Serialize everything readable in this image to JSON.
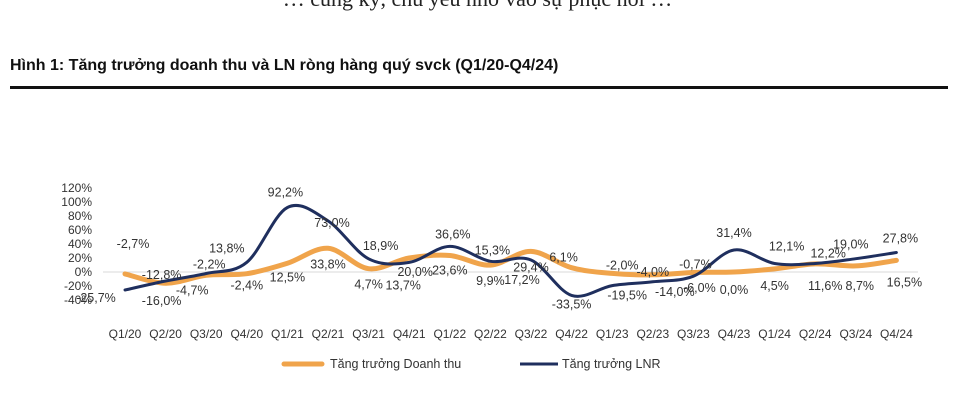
{
  "top_text": "… cùng kỳ, chủ yếu nhờ vào sự phục hồi …",
  "chart_data": {
    "type": "line",
    "title": "Hình 1: Tăng trưởng doanh thu và LN ròng hàng quý svck (Q1/20-Q4/24)",
    "xlabel": "",
    "ylabel": "",
    "ylim": [
      -40,
      120
    ],
    "yticks": [
      "120%",
      "100%",
      "80%",
      "60%",
      "40%",
      "20%",
      "0%",
      "-20%",
      "-40%"
    ],
    "categories": [
      "Q1/20",
      "Q2/20",
      "Q3/20",
      "Q4/20",
      "Q1/21",
      "Q2/21",
      "Q3/21",
      "Q4/21",
      "Q1/22",
      "Q2/22",
      "Q3/22",
      "Q4/22",
      "Q1/23",
      "Q2/23",
      "Q3/23",
      "Q4/23",
      "Q1/24",
      "Q2/24",
      "Q3/24",
      "Q4/24"
    ],
    "series": [
      {
        "name": "Tăng trưởng Doanh thu",
        "color": "#f0a44b",
        "values": [
          -2.7,
          -16.0,
          -4.7,
          -2.4,
          12.5,
          33.8,
          4.7,
          20.0,
          23.6,
          9.9,
          29.4,
          6.1,
          -2.0,
          -4.0,
          -0.7,
          0.0,
          4.5,
          11.6,
          8.7,
          16.5
        ],
        "labels": [
          "-2,7%",
          "-16,0%",
          "-4,7%",
          "-2,4%",
          "12,5%",
          "33,8%",
          "4,7%",
          "20,0%",
          "23,6%",
          "9,9%",
          "29,4%",
          "6,1%",
          "-2,0%",
          "-4,0%",
          "-0,7%",
          "0,0%",
          "4,5%",
          "11,6%",
          "8,7%",
          "16,5%"
        ]
      },
      {
        "name": "Tăng trưởng LNR",
        "color": "#1f2f5e",
        "values": [
          -25.7,
          -12.8,
          -2.2,
          13.8,
          92.2,
          73.0,
          18.9,
          13.7,
          36.6,
          15.3,
          17.2,
          -33.5,
          -19.5,
          -14.0,
          -6.0,
          31.4,
          12.1,
          12.2,
          19.0,
          27.8
        ],
        "labels": [
          "-25,7%",
          "-12,8%",
          "-2,2%",
          "13,8%",
          "92,2%",
          "73,0%",
          "18,9%",
          "13,7%",
          "36,6%",
          "15,3%",
          "17,2%",
          "-33,5%",
          "-19,5%",
          "-14,0%",
          "-6,0%",
          "31,4%",
          "12,1%",
          "12,2%",
          "19,0%",
          "27,8%"
        ]
      }
    ],
    "legend": "bottom-center"
  }
}
